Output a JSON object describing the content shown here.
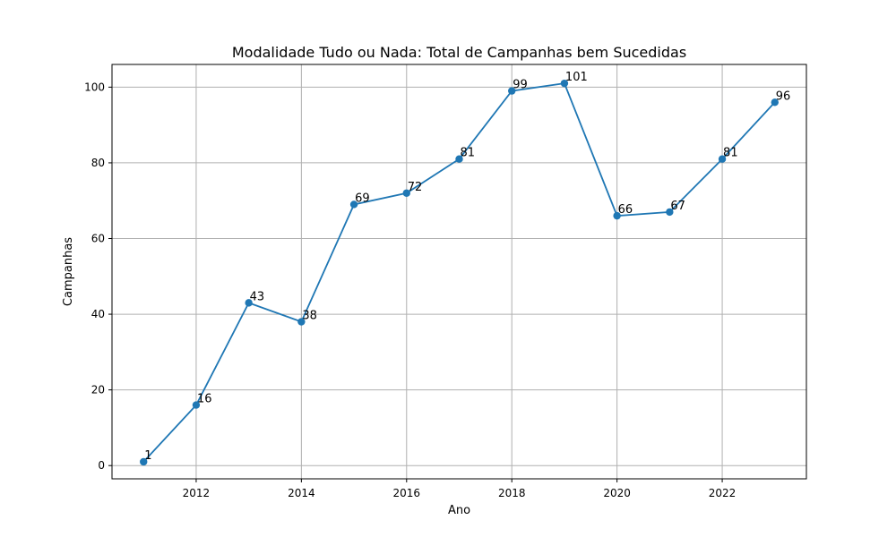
{
  "chart_data": {
    "type": "line",
    "title": "Modalidade Tudo ou Nada: Total de Campanhas bem Sucedidas",
    "xlabel": "Ano",
    "ylabel": "Campanhas",
    "x": [
      2011,
      2012,
      2013,
      2014,
      2015,
      2016,
      2017,
      2018,
      2019,
      2020,
      2021,
      2022,
      2023
    ],
    "series": [
      {
        "values": [
          1,
          16,
          43,
          38,
          69,
          72,
          81,
          99,
          101,
          66,
          67,
          81,
          96
        ],
        "color": "#1f77b4",
        "marker": "circle"
      }
    ],
    "data_labels": [
      "1",
      "16",
      "43",
      "38",
      "69",
      "72",
      "81",
      "99",
      "101",
      "66",
      "67",
      "81",
      "96"
    ],
    "xlim": [
      2010.4,
      2023.6
    ],
    "ylim": [
      -3.5,
      106
    ],
    "x_ticks": [
      2012,
      2014,
      2016,
      2018,
      2020,
      2022
    ],
    "x_tick_labels": [
      "2012",
      "2014",
      "2016",
      "2018",
      "2020",
      "2022"
    ],
    "y_ticks": [
      0,
      20,
      40,
      60,
      80,
      100
    ],
    "y_tick_labels": [
      "0",
      "20",
      "40",
      "60",
      "80",
      "100"
    ],
    "grid": true,
    "legend": "none"
  }
}
